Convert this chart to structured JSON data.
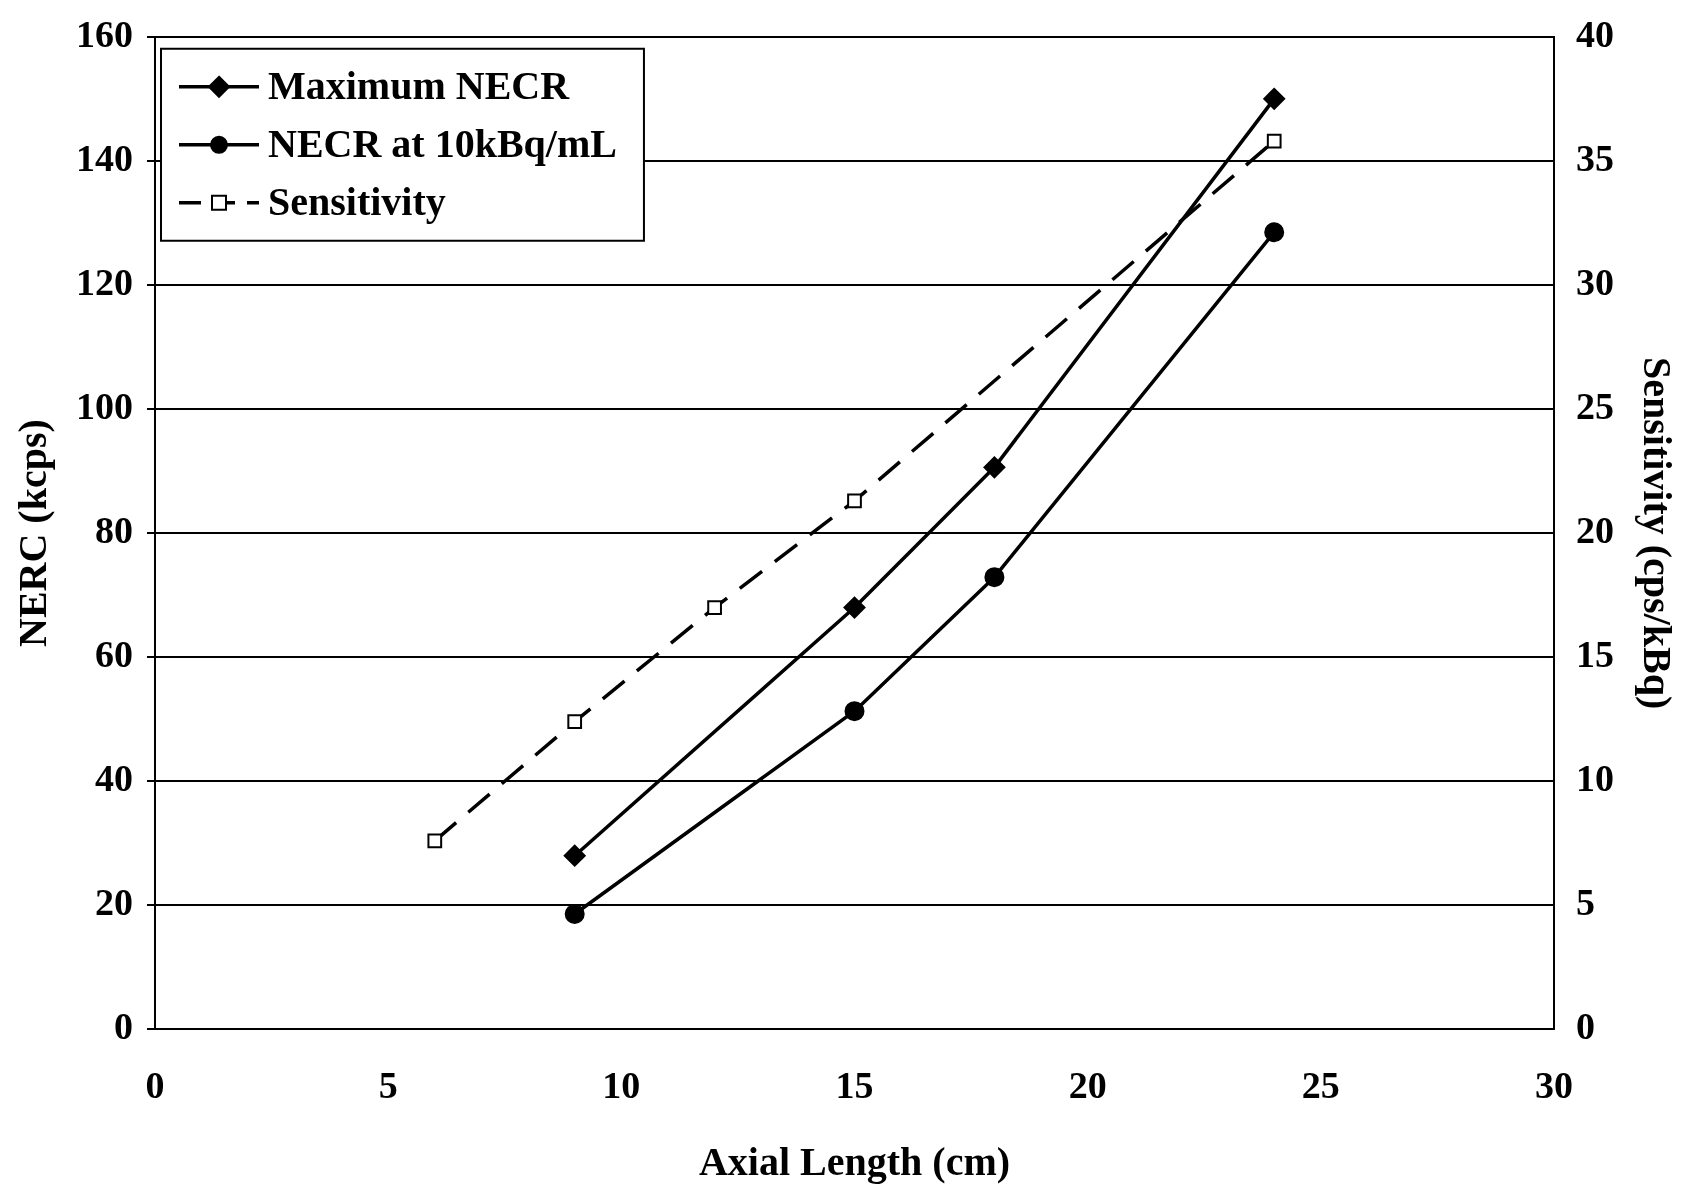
{
  "chart_data": {
    "type": "line",
    "xlabel": "Axial Length (cm)",
    "ylabel": "NERC (kcps)",
    "y2label": "Sensitivity (cps/kBq)",
    "xlim": [
      0,
      30
    ],
    "xticks": [
      0,
      5,
      10,
      15,
      20,
      25,
      30
    ],
    "ylim": [
      0,
      160
    ],
    "yticks": [
      0,
      20,
      40,
      60,
      80,
      100,
      120,
      140,
      160
    ],
    "y2lim": [
      0,
      40
    ],
    "y2ticks": [
      0,
      5,
      10,
      15,
      20,
      25,
      30,
      35,
      40
    ],
    "grid": "y",
    "legend": "top left",
    "series": [
      {
        "name": "Maximum NECR",
        "color": "#000000",
        "x": [
          9,
          15,
          18,
          24
        ],
        "values": [
          28,
          68,
          90.6,
          150
        ],
        "marker": "diamond",
        "line_style": "solid"
      },
      {
        "name": "NECR at 10kBq/mL",
        "color": "#000000",
        "x": [
          9,
          15,
          18,
          24
        ],
        "values": [
          18.6,
          51.3,
          72.9,
          128.5
        ],
        "marker": "circle",
        "line_style": "solid"
      },
      {
        "name": "Sensitivity",
        "color": "#000000",
        "x": [
          6,
          9,
          12,
          15,
          24
        ],
        "values": [
          7.6,
          12.4,
          17,
          21.3,
          35.8
        ],
        "marker": "square",
        "line_style": "dashed",
        "axis": "y2"
      }
    ]
  }
}
